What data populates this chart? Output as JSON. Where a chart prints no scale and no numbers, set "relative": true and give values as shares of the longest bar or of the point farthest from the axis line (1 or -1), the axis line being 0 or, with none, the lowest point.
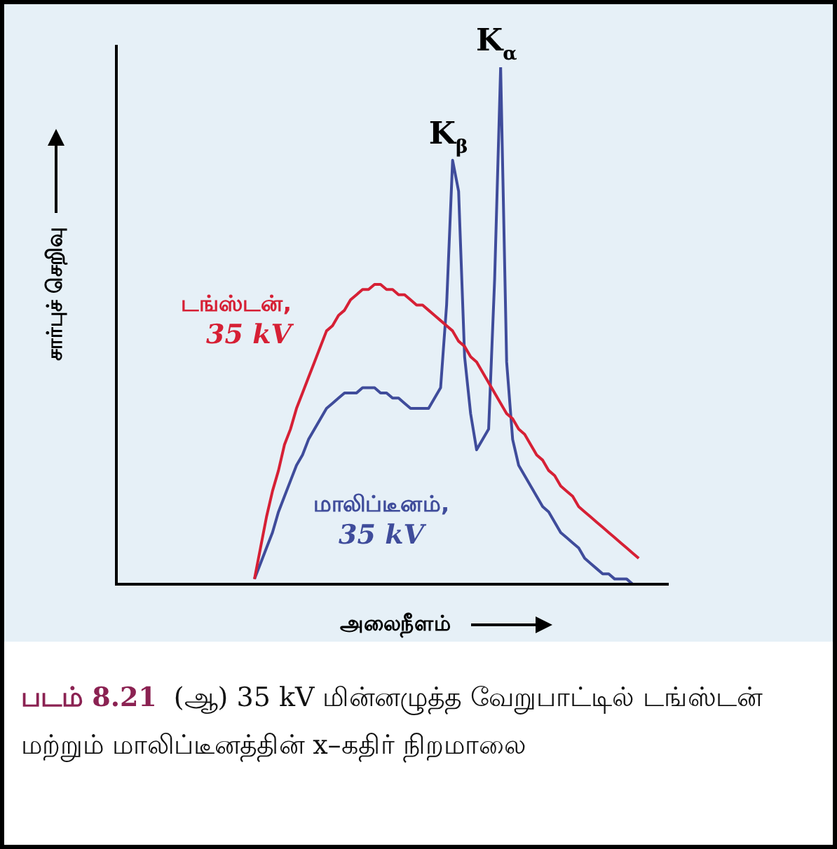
{
  "chart_data": {
    "type": "line",
    "relative": true,
    "marker": "none",
    "xlabel": "அலைநீளம்",
    "ylabel": "சார்புச் செறிவு",
    "categories": [
      null,
      null,
      null,
      null,
      null,
      null,
      null,
      null,
      null,
      null,
      null,
      null,
      null,
      null,
      null,
      null,
      null,
      null,
      null,
      null,
      null,
      null,
      null,
      null,
      null,
      null,
      null,
      null,
      null,
      null,
      null,
      null,
      null,
      null,
      null,
      null,
      null,
      null,
      null,
      null,
      null,
      null,
      null,
      null,
      null,
      null,
      null,
      null,
      null,
      null,
      null,
      null,
      null,
      null,
      null,
      null,
      null,
      null,
      null,
      null,
      null,
      null,
      null,
      null,
      null,
      null,
      null,
      null,
      null,
      null,
      null,
      null,
      null,
      null,
      null,
      null,
      null,
      null,
      null,
      null,
      null,
      null,
      null,
      null,
      null,
      null,
      null,
      null,
      null,
      null,
      null,
      null,
      null
    ],
    "series": [
      {
        "name": "டங்ஸ்டன்,\n35 kV",
        "color": "#d62035",
        "values": [
          null,
          null,
          null,
          null,
          null,
          null,
          null,
          null,
          null,
          null,
          null,
          null,
          null,
          null,
          null,
          null,
          null,
          null,
          null,
          null,
          null,
          null,
          null,
          0.01,
          0.07,
          0.13,
          0.18,
          0.22,
          0.27,
          0.3,
          0.34,
          0.37,
          0.4,
          0.43,
          0.46,
          0.49,
          0.5,
          0.52,
          0.53,
          0.55,
          0.56,
          0.57,
          0.57,
          0.58,
          0.58,
          0.57,
          0.57,
          0.56,
          0.56,
          0.55,
          0.54,
          0.54,
          0.53,
          0.52,
          0.51,
          0.5,
          0.49,
          0.47,
          0.46,
          0.44,
          0.43,
          0.41,
          0.39,
          0.37,
          0.35,
          0.33,
          0.32,
          0.3,
          0.29,
          0.27,
          0.25,
          0.24,
          0.22,
          0.21,
          0.19,
          0.18,
          0.17,
          0.15,
          0.14,
          0.13,
          0.12,
          0.11,
          0.1,
          0.09,
          0.08,
          0.07,
          0.06,
          0.05,
          null,
          null,
          null,
          null,
          null
        ]
      },
      {
        "name": "மாலிப்டீனம்,\n35 kV",
        "color": "#3f4c9b",
        "values": [
          null,
          null,
          null,
          null,
          null,
          null,
          null,
          null,
          null,
          null,
          null,
          null,
          null,
          null,
          null,
          null,
          null,
          null,
          null,
          null,
          null,
          null,
          null,
          0.01,
          0.04,
          0.07,
          0.1,
          0.14,
          0.17,
          0.2,
          0.23,
          0.25,
          0.28,
          0.3,
          0.32,
          0.34,
          0.35,
          0.36,
          0.37,
          0.37,
          0.37,
          0.38,
          0.38,
          0.38,
          0.37,
          0.37,
          0.36,
          0.36,
          0.35,
          0.34,
          0.34,
          0.34,
          0.34,
          0.36,
          0.38,
          0.54,
          0.82,
          0.76,
          0.44,
          0.33,
          0.26,
          0.28,
          0.3,
          0.59,
          1,
          0.43,
          0.28,
          0.23,
          0.21,
          0.19,
          0.17,
          0.15,
          0.14,
          0.12,
          0.1,
          0.09,
          0.08,
          0.07,
          0.05,
          0.04,
          0.03,
          0.02,
          0.02,
          0.01,
          0.01,
          0.01,
          0,
          null,
          null,
          null,
          null,
          null,
          null
        ]
      }
    ],
    "annotations": [
      {
        "text": "K$_{α}$",
        "y": 1
      },
      {
        "text": "K$_{β}$",
        "y": 0.82
      },
      "படம் 8.21",
      "(ஆ) 35 kV மின்னழுத்த வேறுபாட்டில் டங்ஸ்டன் மற்றும் மாலிப்டீனத்தின் x–கதிர் நிறமாலை"
    ]
  }
}
